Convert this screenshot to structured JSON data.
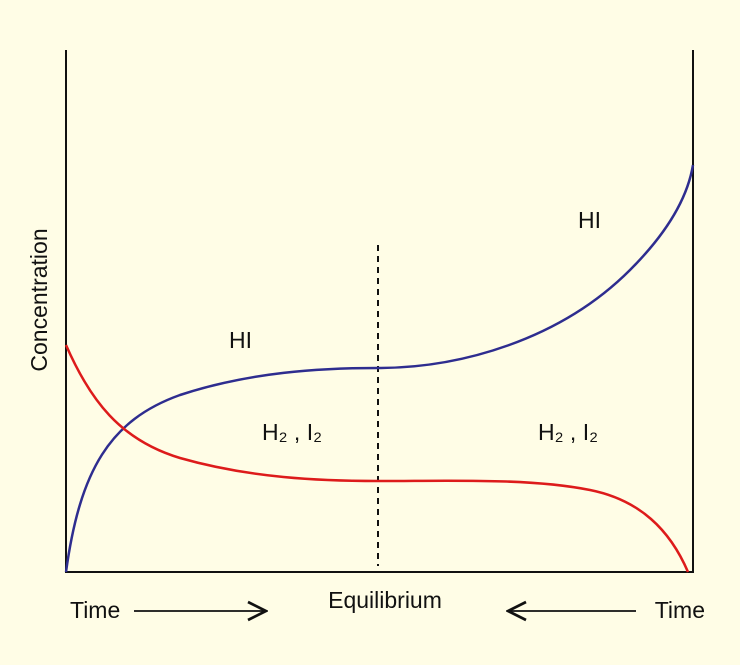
{
  "y_axis_label": "Concentration",
  "curve_labels": [
    "HI",
    "HI",
    "H₂ , I₂",
    "H₂ , I₂"
  ],
  "x_labels": {
    "left": "Time",
    "center": "Equilibrium",
    "right": "Time"
  }
}
